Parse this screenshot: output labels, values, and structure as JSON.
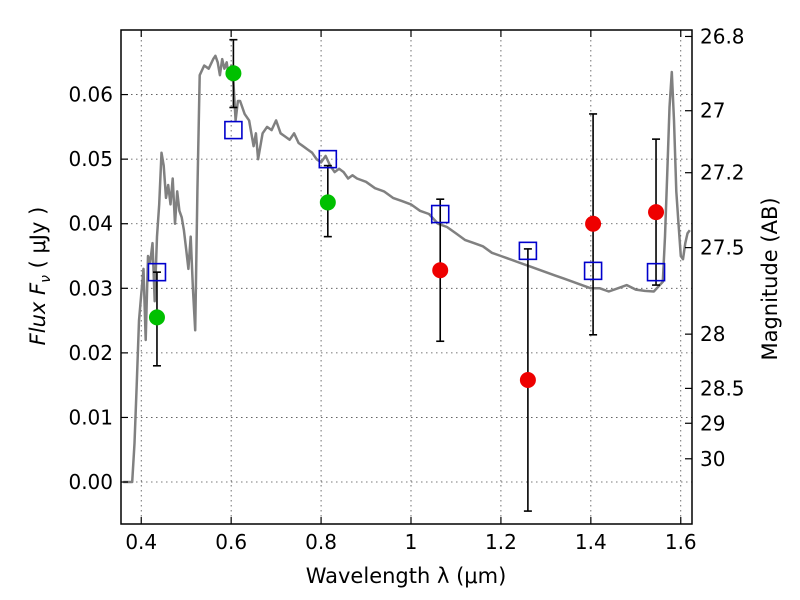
{
  "chart_data": {
    "type": "scatter",
    "xlabel": "Wavelength  λ (μm)",
    "ylabel": "Flux  F",
    "ylabel_sub": "ν",
    "ylabel_unit": "  ( μJy )",
    "ylabel_right": "Magnitude (AB)",
    "xlim": [
      0.355,
      1.625
    ],
    "ylim": [
      -0.0065,
      0.07
    ],
    "x_ticks": [
      0.4,
      0.6,
      0.8,
      1.0,
      1.2,
      1.4,
      1.6
    ],
    "x_tick_labels": [
      "0.4",
      "0.6",
      "0.8",
      "1",
      "1.2",
      "1.4",
      "1.6"
    ],
    "y_ticks": [
      0.0,
      0.01,
      0.02,
      0.03,
      0.04,
      0.05,
      0.06
    ],
    "y_tick_labels": [
      "0.00",
      "0.01",
      "0.02",
      "0.03",
      "0.04",
      "0.05",
      "0.06"
    ],
    "right_ticks": [
      {
        "label": "26.8",
        "flux": 0.069
      },
      {
        "label": "27",
        "flux": 0.0575
      },
      {
        "label": "27.2",
        "flux": 0.0479
      },
      {
        "label": "27.5",
        "flux": 0.0363
      },
      {
        "label": "28",
        "flux": 0.0229
      },
      {
        "label": "28.5",
        "flux": 0.0145
      },
      {
        "label": "29",
        "flux": 0.0091
      },
      {
        "label": "30",
        "flux": 0.0036
      }
    ],
    "grid": true,
    "series": [
      {
        "kind": "model_spectrum",
        "color": "#808080",
        "x": [
          0.36,
          0.38,
          0.385,
          0.39,
          0.395,
          0.4,
          0.405,
          0.41,
          0.415,
          0.42,
          0.425,
          0.43,
          0.435,
          0.44,
          0.445,
          0.45,
          0.455,
          0.46,
          0.465,
          0.47,
          0.475,
          0.48,
          0.485,
          0.49,
          0.495,
          0.5,
          0.505,
          0.51,
          0.515,
          0.52,
          0.525,
          0.53,
          0.54,
          0.55,
          0.56,
          0.565,
          0.57,
          0.575,
          0.58,
          0.585,
          0.59,
          0.595,
          0.6,
          0.605,
          0.61,
          0.615,
          0.62,
          0.63,
          0.64,
          0.65,
          0.655,
          0.66,
          0.67,
          0.68,
          0.69,
          0.7,
          0.71,
          0.72,
          0.73,
          0.74,
          0.75,
          0.76,
          0.77,
          0.78,
          0.79,
          0.8,
          0.81,
          0.82,
          0.83,
          0.84,
          0.85,
          0.86,
          0.87,
          0.88,
          0.9,
          0.92,
          0.94,
          0.96,
          0.98,
          1.0,
          1.02,
          1.04,
          1.06,
          1.08,
          1.1,
          1.12,
          1.14,
          1.16,
          1.18,
          1.2,
          1.22,
          1.24,
          1.26,
          1.28,
          1.3,
          1.32,
          1.34,
          1.36,
          1.38,
          1.4,
          1.42,
          1.44,
          1.46,
          1.48,
          1.5,
          1.52,
          1.54,
          1.56,
          1.565,
          1.57,
          1.575,
          1.58,
          1.585,
          1.59,
          1.595,
          1.6,
          1.605,
          1.61,
          1.615,
          1.62
        ],
        "y": [
          0.0,
          0.0,
          0.006,
          0.015,
          0.025,
          0.029,
          0.033,
          0.022,
          0.035,
          0.034,
          0.037,
          0.028,
          0.038,
          0.043,
          0.051,
          0.049,
          0.044,
          0.046,
          0.043,
          0.047,
          0.04,
          0.045,
          0.042,
          0.041,
          0.039,
          0.036,
          0.033,
          0.038,
          0.03,
          0.0235,
          0.045,
          0.063,
          0.0645,
          0.064,
          0.0655,
          0.066,
          0.065,
          0.063,
          0.0655,
          0.064,
          0.065,
          0.0625,
          0.0645,
          0.062,
          0.056,
          0.059,
          0.059,
          0.057,
          0.056,
          0.052,
          0.054,
          0.05,
          0.054,
          0.055,
          0.0545,
          0.056,
          0.054,
          0.0535,
          0.053,
          0.054,
          0.0525,
          0.052,
          0.0515,
          0.051,
          0.05,
          0.0495,
          0.0505,
          0.049,
          0.048,
          0.0485,
          0.048,
          0.047,
          0.0475,
          0.047,
          0.0465,
          0.0455,
          0.045,
          0.044,
          0.0435,
          0.043,
          0.042,
          0.0415,
          0.04,
          0.0395,
          0.0385,
          0.0375,
          0.037,
          0.0365,
          0.0355,
          0.035,
          0.0345,
          0.034,
          0.0335,
          0.033,
          0.0325,
          0.032,
          0.0315,
          0.031,
          0.0305,
          0.03,
          0.03,
          0.0295,
          0.03,
          0.0305,
          0.0298,
          0.0296,
          0.0295,
          0.031,
          0.038,
          0.048,
          0.058,
          0.0635,
          0.056,
          0.045,
          0.04,
          0.035,
          0.0345,
          0.037,
          0.0385,
          0.039
        ]
      },
      {
        "kind": "model_photometry",
        "marker": "open-square",
        "color": "#0000cc",
        "x": [
          0.435,
          0.605,
          0.815,
          1.065,
          1.26,
          1.405,
          1.545
        ],
        "y": [
          0.0325,
          0.0545,
          0.05,
          0.0415,
          0.0358,
          0.0327,
          0.0325
        ]
      },
      {
        "kind": "detections",
        "marker": "filled-circle",
        "color": "#00c000",
        "x": [
          0.435,
          0.605,
          0.815
        ],
        "y": [
          0.0255,
          0.0633,
          0.0433
        ],
        "yerr_low": [
          0.0075,
          0.0053,
          0.0053
        ],
        "yerr_high": [
          0.007,
          0.0052,
          0.0057
        ]
      },
      {
        "kind": "low_significance",
        "marker": "filled-circle",
        "color": "#ee0000",
        "x": [
          1.065,
          1.26,
          1.405,
          1.545
        ],
        "y": [
          0.0328,
          0.0158,
          0.04,
          0.0418
        ],
        "yerr_low": [
          0.011,
          0.0203,
          0.0172,
          0.0113
        ],
        "yerr_high": [
          0.011,
          0.0203,
          0.017,
          0.0113
        ]
      }
    ]
  }
}
